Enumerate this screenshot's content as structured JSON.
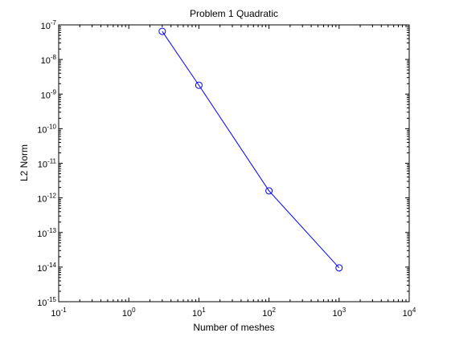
{
  "chart_data": {
    "type": "line",
    "title": "Problem 1 Quadratic",
    "xlabel": "Number of meshes",
    "ylabel": "L2 Norm",
    "x_scale": "log",
    "y_scale": "log",
    "x_range": [
      0.1,
      10000
    ],
    "y_range": [
      1e-15,
      1e-07
    ],
    "grid": false,
    "legend": "none",
    "x_ticks": [
      {
        "base": "10",
        "exp": "-1"
      },
      {
        "base": "10",
        "exp": "0"
      },
      {
        "base": "10",
        "exp": "1"
      },
      {
        "base": "10",
        "exp": "2"
      },
      {
        "base": "10",
        "exp": "3"
      },
      {
        "base": "10",
        "exp": "4"
      }
    ],
    "y_ticks": [
      {
        "base": "10",
        "exp": "-7"
      },
      {
        "base": "10",
        "exp": "-8"
      },
      {
        "base": "10",
        "exp": "-9"
      },
      {
        "base": "10",
        "exp": "-10"
      },
      {
        "base": "10",
        "exp": "-11"
      },
      {
        "base": "10",
        "exp": "-12"
      },
      {
        "base": "10",
        "exp": "-13"
      },
      {
        "base": "10",
        "exp": "-14"
      },
      {
        "base": "10",
        "exp": "-15"
      }
    ],
    "series": [
      {
        "x": [
          3,
          10,
          100,
          1000
        ],
        "y": [
          6.5e-08,
          1.8e-09,
          1.6e-12,
          9.5e-15
        ],
        "color": "#0000ff",
        "marker": "circle"
      }
    ]
  }
}
